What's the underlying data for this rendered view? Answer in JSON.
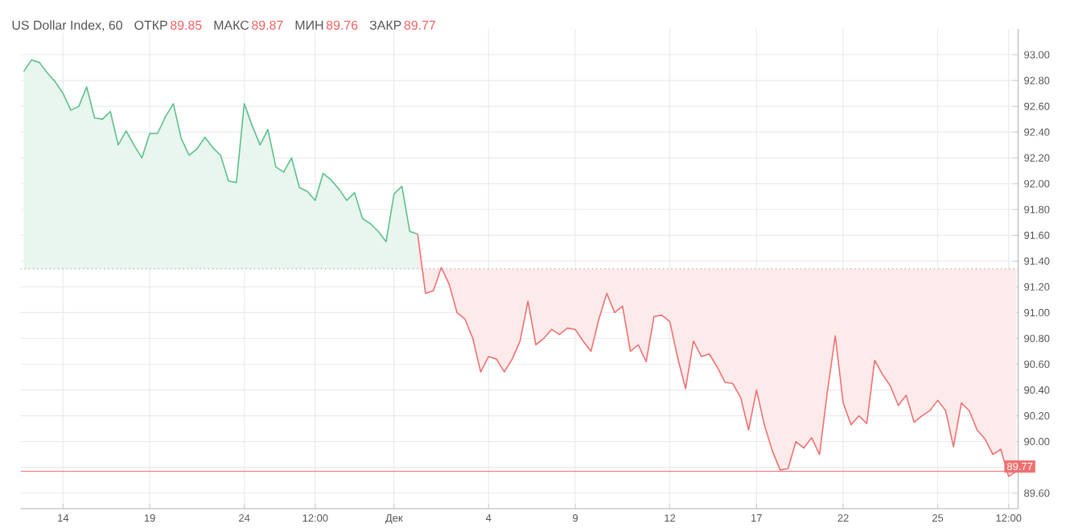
{
  "chart_data": {
    "type": "line",
    "title": "US Dollar Index, 60",
    "annotations": [
      "ОТКР",
      "89.85",
      "МАКС",
      "89.87",
      "МИН",
      "89.76",
      "ЗАКР",
      "89.77"
    ],
    "categories": [
      null,
      null,
      null,
      null,
      null,
      "14",
      null,
      null,
      null,
      null,
      null,
      null,
      null,
      null,
      null,
      null,
      "19",
      null,
      null,
      null,
      null,
      null,
      null,
      null,
      null,
      null,
      null,
      null,
      "24",
      null,
      null,
      null,
      null,
      null,
      null,
      null,
      null,
      "12:00",
      null,
      null,
      null,
      null,
      null,
      null,
      null,
      null,
      null,
      "Дек",
      null,
      null,
      null,
      null,
      null,
      null,
      null,
      null,
      null,
      null,
      null,
      "4",
      null,
      null,
      null,
      null,
      null,
      null,
      null,
      null,
      null,
      null,
      "9",
      null,
      null,
      null,
      null,
      null,
      null,
      null,
      null,
      null,
      null,
      null,
      "12",
      null,
      null,
      null,
      null,
      null,
      null,
      null,
      null,
      null,
      null,
      "17",
      null,
      null,
      null,
      null,
      null,
      null,
      null,
      null,
      null,
      null,
      "22",
      null,
      null,
      null,
      null,
      null,
      null,
      null,
      null,
      null,
      null,
      null,
      "25",
      null,
      null,
      null,
      null,
      null,
      null,
      null,
      null,
      "12:00",
      null
    ],
    "ylim": [
      89.48,
      93.2
    ],
    "yticks": [
      {
        "value": 89.6,
        "label": "89.60"
      },
      {
        "value": 89.8,
        "label": null
      },
      {
        "value": 90.0,
        "label": "90.00"
      },
      {
        "value": 90.2,
        "label": "90.20"
      },
      {
        "value": 90.4,
        "label": "90.40"
      },
      {
        "value": 90.6,
        "label": "90.60"
      },
      {
        "value": 90.8,
        "label": "90.80"
      },
      {
        "value": 91.0,
        "label": "91.00"
      },
      {
        "value": 91.2,
        "label": "91.20"
      },
      {
        "value": 91.4,
        "label": "91.40"
      },
      {
        "value": 91.6,
        "label": "91.60"
      },
      {
        "value": 91.8,
        "label": "91.80"
      },
      {
        "value": 92.0,
        "label": "92.00"
      },
      {
        "value": 92.2,
        "label": "92.20"
      },
      {
        "value": 92.4,
        "label": "92.40"
      },
      {
        "value": 92.6,
        "label": "92.60"
      },
      {
        "value": 92.8,
        "label": "92.80"
      },
      {
        "value": 93.0,
        "label": "93.00"
      }
    ],
    "grid": true,
    "marker": "none",
    "line_style": "solid",
    "ref_lines": [
      {
        "axis": "y",
        "value": 91.34,
        "color": "#9e9e9e",
        "line_style": "dotted"
      },
      {
        "axis": "y",
        "value": 89.77,
        "label": "89.77",
        "color": "#f07070",
        "line_style": "solid"
      }
    ],
    "series": [
      {
        "color": "#5cc08a",
        "values": [
          92.87,
          92.96,
          92.94,
          92.86,
          92.79,
          92.7,
          92.57,
          92.6,
          92.75,
          92.51,
          92.5,
          92.56,
          92.3,
          92.41,
          92.3,
          92.2,
          92.39,
          92.39,
          92.52,
          92.62,
          92.35,
          92.22,
          92.27,
          92.36,
          92.28,
          92.22,
          92.02,
          92.01,
          92.62,
          92.45,
          92.3,
          92.42,
          92.13,
          92.09,
          92.2,
          91.97,
          91.94,
          91.87,
          92.08,
          92.03,
          91.96,
          91.87,
          91.93,
          91.73,
          91.69,
          91.63,
          91.55,
          91.92,
          91.98,
          91.63,
          91.61,
          null,
          null,
          null,
          null,
          null,
          null,
          null,
          null,
          null,
          null,
          null,
          null,
          null,
          null,
          null,
          null,
          null,
          null,
          null,
          null,
          null,
          null,
          null,
          null,
          null,
          null,
          null,
          null,
          null,
          null,
          null,
          null,
          null,
          null,
          null,
          null,
          null,
          null,
          null,
          null,
          null,
          null,
          null,
          null,
          null,
          null,
          null,
          null,
          null,
          null,
          null,
          null,
          null,
          null,
          null,
          null,
          null,
          null,
          null,
          null,
          null,
          null,
          null,
          null,
          null,
          null,
          null,
          null,
          null,
          null,
          null,
          null,
          null,
          null,
          null,
          null
        ],
        "upper": [
          92.87,
          92.96,
          92.94,
          92.86,
          92.79,
          92.7,
          92.57,
          92.6,
          92.75,
          92.51,
          92.5,
          92.56,
          92.3,
          92.41,
          92.3,
          92.2,
          92.39,
          92.39,
          92.52,
          92.62,
          92.35,
          92.22,
          92.27,
          92.36,
          92.28,
          92.22,
          92.02,
          92.01,
          92.62,
          92.45,
          92.3,
          92.42,
          92.13,
          92.09,
          92.2,
          91.97,
          91.94,
          91.87,
          92.08,
          92.03,
          91.96,
          91.87,
          91.93,
          91.73,
          91.69,
          91.63,
          91.55,
          91.92,
          91.98,
          91.63,
          91.61,
          null,
          null,
          null,
          null,
          null,
          null,
          null,
          null,
          null,
          null,
          null,
          null,
          null,
          null,
          null,
          null,
          null,
          null,
          null,
          null,
          null,
          null,
          null,
          null,
          null,
          null,
          null,
          null,
          null,
          null,
          null,
          null,
          null,
          null,
          null,
          null,
          null,
          null,
          null,
          null,
          null,
          null,
          null,
          null,
          null,
          null,
          null,
          null,
          null,
          null,
          null,
          null,
          null,
          null,
          null,
          null,
          null,
          null,
          null,
          null,
          null,
          null,
          null,
          null,
          null,
          null,
          null,
          null,
          null,
          null,
          null,
          null,
          null,
          null,
          null,
          null
        ],
        "lower": [
          91.34,
          91.34,
          91.34,
          91.34,
          91.34,
          91.34,
          91.34,
          91.34,
          91.34,
          91.34,
          91.34,
          91.34,
          91.34,
          91.34,
          91.34,
          91.34,
          91.34,
          91.34,
          91.34,
          91.34,
          91.34,
          91.34,
          91.34,
          91.34,
          91.34,
          91.34,
          91.34,
          91.34,
          91.34,
          91.34,
          91.34,
          91.34,
          91.34,
          91.34,
          91.34,
          91.34,
          91.34,
          91.34,
          91.34,
          91.34,
          91.34,
          91.34,
          91.34,
          91.34,
          91.34,
          91.34,
          91.34,
          91.34,
          91.34,
          91.34,
          91.34,
          null,
          null,
          null,
          null,
          null,
          null,
          null,
          null,
          null,
          null,
          null,
          null,
          null,
          null,
          null,
          null,
          null,
          null,
          null,
          null,
          null,
          null,
          null,
          null,
          null,
          null,
          null,
          null,
          null,
          null,
          null,
          null,
          null,
          null,
          null,
          null,
          null,
          null,
          null,
          null,
          null,
          null,
          null,
          null,
          null,
          null,
          null,
          null,
          null,
          null,
          null,
          null,
          null,
          null,
          null,
          null,
          null,
          null,
          null,
          null,
          null,
          null,
          null,
          null,
          null,
          null,
          null,
          null,
          null,
          null,
          null,
          null,
          null,
          null,
          null,
          null
        ]
      },
      {
        "color": "#f07070",
        "values": [
          null,
          null,
          null,
          null,
          null,
          null,
          null,
          null,
          null,
          null,
          null,
          null,
          null,
          null,
          null,
          null,
          null,
          null,
          null,
          null,
          null,
          null,
          null,
          null,
          null,
          null,
          null,
          null,
          null,
          null,
          null,
          null,
          null,
          null,
          null,
          null,
          null,
          null,
          null,
          null,
          null,
          null,
          null,
          null,
          null,
          null,
          null,
          null,
          null,
          null,
          91.61,
          91.15,
          91.17,
          91.35,
          91.22,
          91.0,
          90.95,
          90.8,
          90.54,
          90.66,
          90.64,
          90.54,
          90.64,
          90.78,
          91.09,
          90.75,
          90.8,
          90.87,
          90.83,
          90.88,
          90.87,
          90.78,
          90.7,
          90.95,
          91.15,
          91.0,
          91.05,
          90.7,
          90.75,
          90.62,
          90.97,
          90.98,
          90.93,
          90.65,
          90.41,
          90.78,
          90.66,
          90.68,
          90.58,
          90.46,
          90.45,
          90.34,
          90.09,
          90.4,
          90.13,
          89.93,
          89.78,
          89.79,
          90.0,
          89.95,
          90.03,
          89.9,
          90.39,
          90.82,
          90.3,
          90.13,
          90.2,
          90.14,
          90.63,
          90.52,
          90.43,
          90.28,
          90.36,
          90.15,
          90.2,
          90.24,
          90.32,
          90.24,
          89.96,
          90.3,
          90.24,
          90.09,
          90.02,
          89.9,
          89.94,
          89.73,
          89.77
        ],
        "lower": [
          null,
          null,
          null,
          null,
          null,
          null,
          null,
          null,
          null,
          null,
          null,
          null,
          null,
          null,
          null,
          null,
          null,
          null,
          null,
          null,
          null,
          null,
          null,
          null,
          null,
          null,
          null,
          null,
          null,
          null,
          null,
          null,
          null,
          null,
          null,
          null,
          null,
          null,
          null,
          null,
          null,
          null,
          null,
          null,
          null,
          null,
          null,
          null,
          null,
          null,
          91.61,
          91.15,
          91.17,
          91.35,
          91.22,
          91.0,
          90.95,
          90.8,
          90.54,
          90.66,
          90.64,
          90.54,
          90.64,
          90.78,
          91.09,
          90.75,
          90.8,
          90.87,
          90.83,
          90.88,
          90.87,
          90.78,
          90.7,
          90.95,
          91.15,
          91.0,
          91.05,
          90.7,
          90.75,
          90.62,
          90.97,
          90.98,
          90.93,
          90.65,
          90.41,
          90.78,
          90.66,
          90.68,
          90.58,
          90.46,
          90.45,
          90.34,
          90.09,
          90.4,
          90.13,
          89.93,
          89.78,
          89.79,
          90.0,
          89.95,
          90.03,
          89.9,
          90.39,
          90.82,
          90.3,
          90.13,
          90.2,
          90.14,
          90.63,
          90.52,
          90.43,
          90.28,
          90.36,
          90.15,
          90.2,
          90.24,
          90.32,
          90.24,
          89.96,
          90.3,
          90.24,
          90.09,
          90.02,
          89.9,
          89.94,
          89.73,
          89.77
        ],
        "upper": [
          null,
          null,
          null,
          null,
          null,
          null,
          null,
          null,
          null,
          null,
          null,
          null,
          null,
          null,
          null,
          null,
          null,
          null,
          null,
          null,
          null,
          null,
          null,
          null,
          null,
          null,
          null,
          null,
          null,
          null,
          null,
          null,
          null,
          null,
          null,
          null,
          null,
          null,
          null,
          null,
          null,
          null,
          null,
          null,
          null,
          null,
          null,
          null,
          null,
          null,
          91.34,
          91.34,
          91.34,
          91.34,
          91.34,
          91.34,
          91.34,
          91.34,
          91.34,
          91.34,
          91.34,
          91.34,
          91.34,
          91.34,
          91.34,
          91.34,
          91.34,
          91.34,
          91.34,
          91.34,
          91.34,
          91.34,
          91.34,
          91.34,
          91.34,
          91.34,
          91.34,
          91.34,
          91.34,
          91.34,
          91.34,
          91.34,
          91.34,
          91.34,
          91.34,
          91.34,
          91.34,
          91.34,
          91.34,
          91.34,
          91.34,
          91.34,
          91.34,
          91.34,
          91.34,
          91.34,
          91.34,
          91.34,
          91.34,
          91.34,
          91.34,
          91.34,
          91.34,
          91.34,
          91.34,
          91.34,
          91.34,
          91.34,
          91.34,
          91.34,
          91.34,
          91.34,
          91.34,
          91.34,
          91.34,
          91.34,
          91.34,
          91.34,
          91.34,
          91.34,
          91.34,
          91.34,
          91.34,
          91.34,
          91.34,
          91.34,
          91.34
        ]
      }
    ]
  }
}
